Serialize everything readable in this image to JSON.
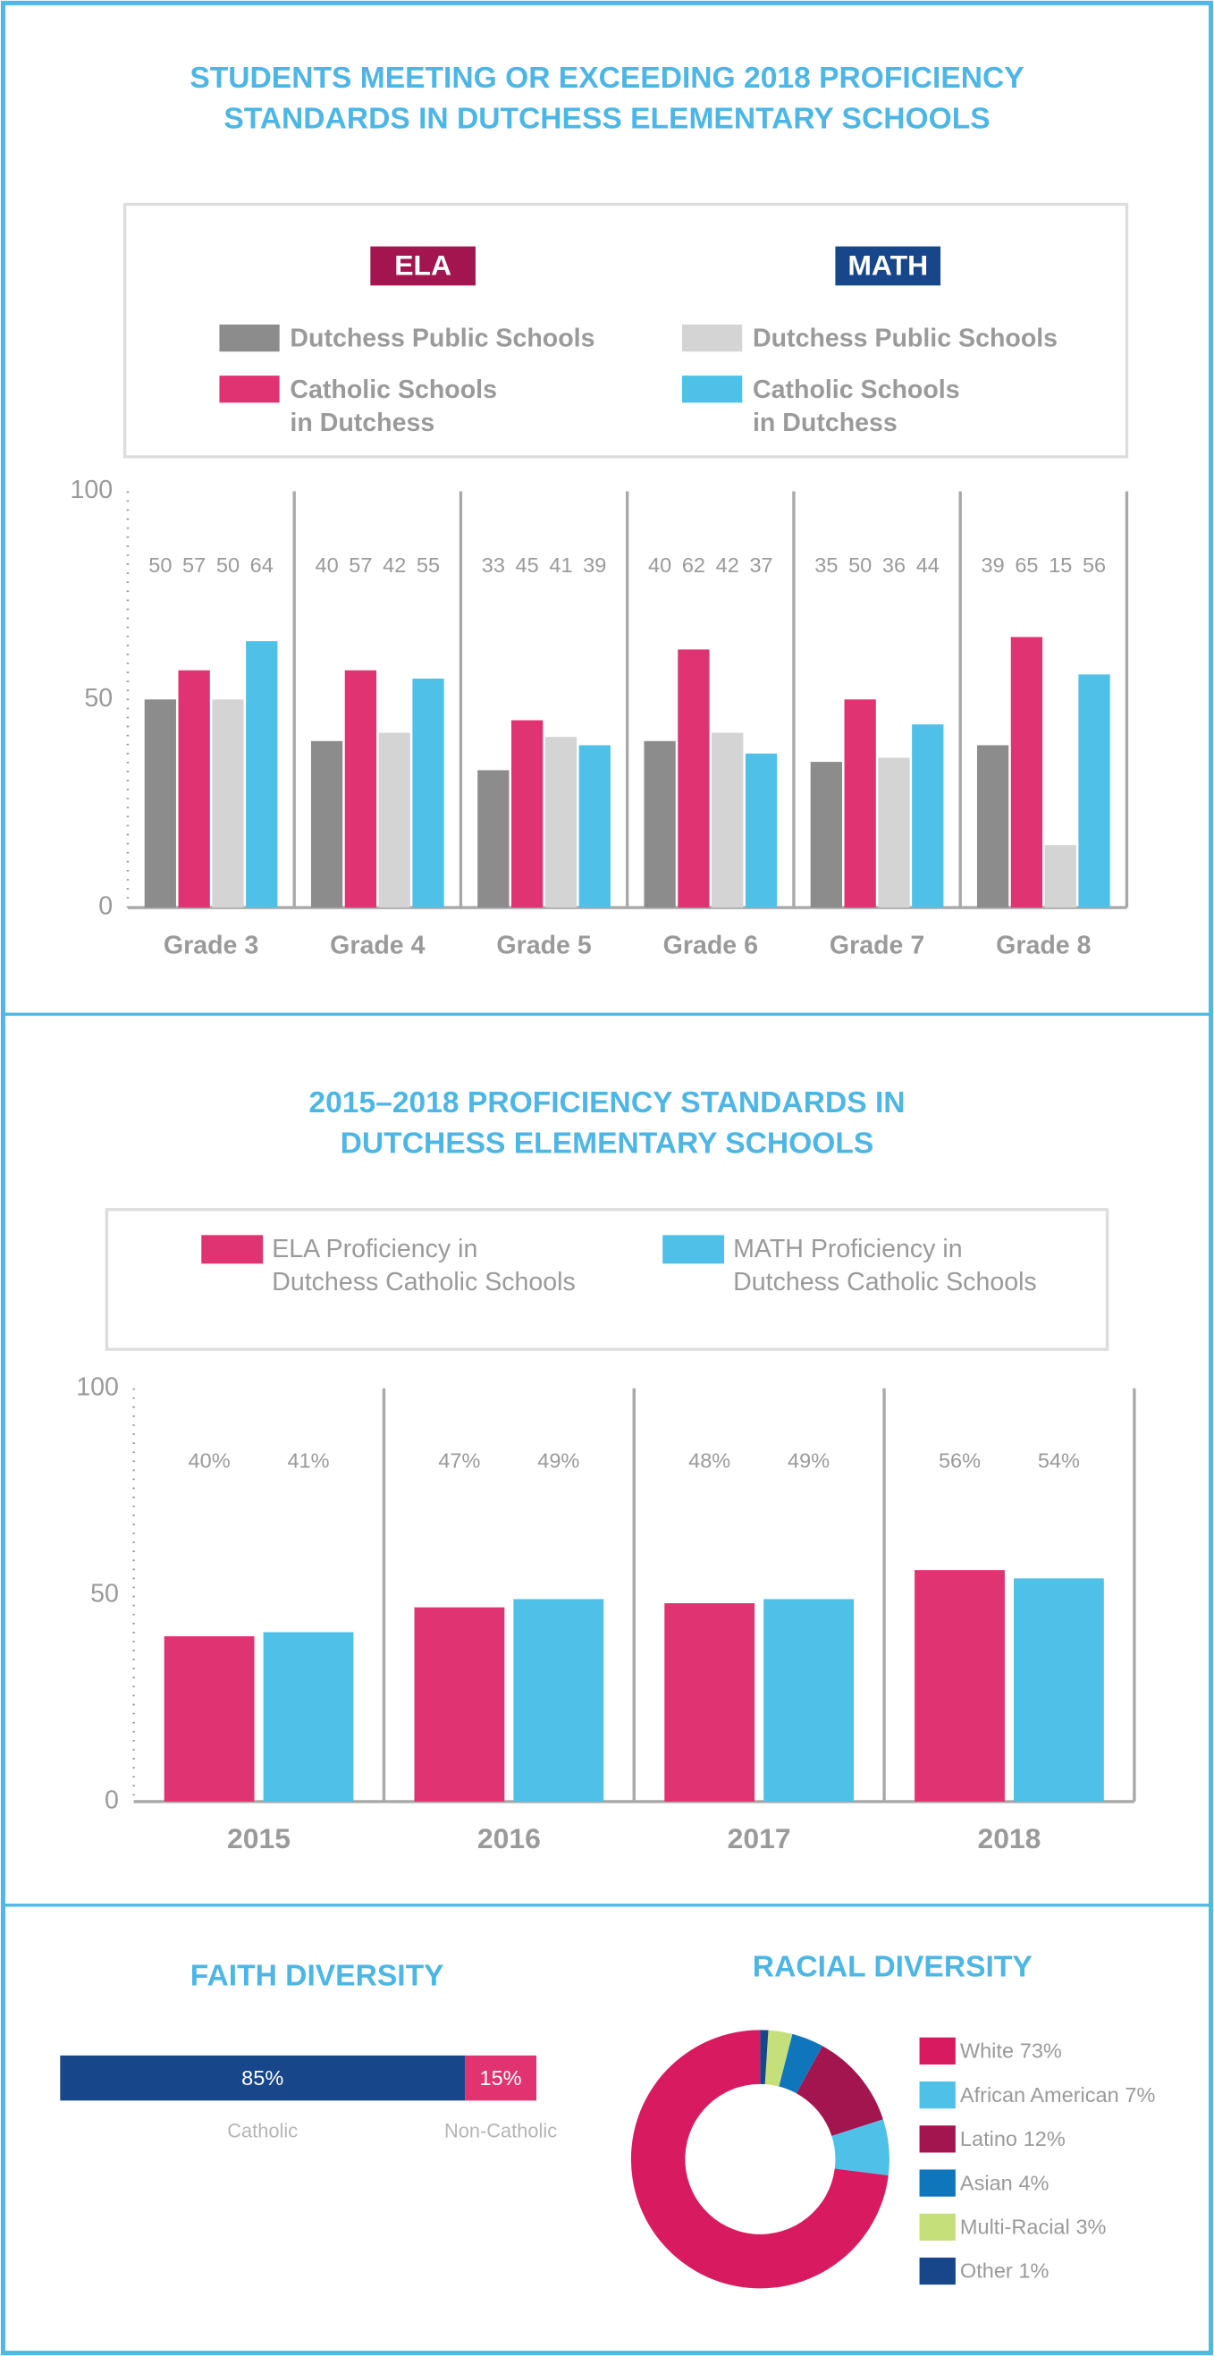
{
  "chart_data": [
    {
      "type": "bar",
      "title": [
        "STUDENTS MEETING OR EXCEEDING 2018 PROFICIENCY",
        "STANDARDS IN DUTCHESS ELEMENTARY SCHOOLS"
      ],
      "categories": [
        "Grade 3",
        "Grade 4",
        "Grade 5",
        "Grade 6",
        "Grade 7",
        "Grade 8"
      ],
      "groups": [
        {
          "name": "ELA",
          "color": "#a3154f",
          "series": [
            {
              "name": "Dutchess Public Schools",
              "color": "#8c8c8c",
              "values": [
                50,
                40,
                33,
                40,
                35,
                39
              ]
            },
            {
              "name": [
                "Catholic Schools",
                "in Dutchess"
              ],
              "color": "#e03371",
              "values": [
                57,
                57,
                45,
                62,
                50,
                65
              ]
            }
          ]
        },
        {
          "name": "MATH",
          "color": "#17468a",
          "series": [
            {
              "name": "Dutchess Public Schools",
              "color": "#d4d4d4",
              "values": [
                50,
                42,
                41,
                42,
                36,
                15
              ]
            },
            {
              "name": [
                "Catholic Schools",
                "in Dutchess"
              ],
              "color": "#4fc1e9",
              "values": [
                64,
                55,
                39,
                37,
                44,
                56
              ]
            }
          ]
        }
      ],
      "ylim": [
        0,
        100
      ],
      "yticks": [
        0,
        50,
        100
      ]
    },
    {
      "type": "bar",
      "title": [
        "2015–2018 PROFICIENCY STANDARDS IN",
        "DUTCHESS ELEMENTARY SCHOOLS"
      ],
      "categories": [
        "2015",
        "2016",
        "2017",
        "2018"
      ],
      "series": [
        {
          "name": [
            "ELA Proficiency in",
            "Dutchess Catholic Schools"
          ],
          "color": "#e03371",
          "values": [
            40,
            47,
            48,
            56
          ],
          "value_labels": [
            "40%",
            "47%",
            "48%",
            "56%"
          ]
        },
        {
          "name": [
            "MATH Proficiency in",
            "Dutchess Catholic Schools"
          ],
          "color": "#4fc1e9",
          "values": [
            41,
            49,
            49,
            54
          ],
          "value_labels": [
            "41%",
            "49%",
            "49%",
            "54%"
          ]
        }
      ],
      "ylim": [
        0,
        100
      ],
      "yticks": [
        0,
        50,
        100
      ]
    },
    {
      "type": "bar",
      "orientation": "horizontal",
      "stacked": true,
      "title": "FAITH DIVERSITY",
      "categories": [
        "Catholic",
        "Non-Catholic"
      ],
      "values": [
        85,
        15
      ],
      "value_labels": [
        "85%",
        "15%"
      ],
      "colors": [
        "#17468a",
        "#e0336f"
      ]
    },
    {
      "type": "pie",
      "donut": true,
      "title": "RACIAL DIVERSITY",
      "categories": [
        "White",
        "African American",
        "Latino",
        "Asian",
        "Multi-Racial",
        "Other"
      ],
      "values": [
        73,
        7,
        12,
        4,
        3,
        1
      ],
      "value_labels": [
        "73%",
        "7%",
        "12%",
        "4%",
        "3%",
        "1%"
      ],
      "colors": [
        "#d81b60",
        "#4fc1e9",
        "#a3154f",
        "#1076bc",
        "#c5df7a",
        "#17468a"
      ]
    }
  ]
}
